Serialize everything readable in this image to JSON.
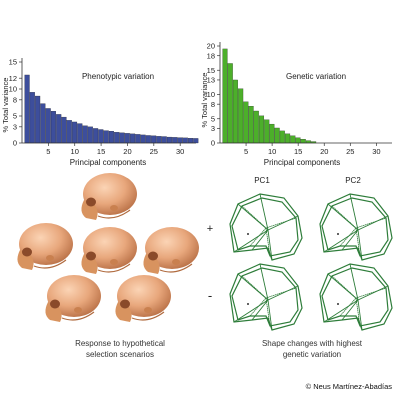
{
  "chart_data": [
    {
      "type": "bar",
      "title": "Phenotypic variation",
      "xlabel": "Principal components",
      "ylabel": "% Total variance",
      "color": "#3d4e9c",
      "xlim": [
        0,
        33
      ],
      "ylim": [
        0,
        15
      ],
      "x_ticks": [
        5,
        10,
        15,
        20,
        25,
        30
      ],
      "y_ticks": [
        0,
        3,
        5,
        8,
        10,
        12,
        15
      ],
      "x": [
        1,
        2,
        3,
        4,
        5,
        6,
        7,
        8,
        9,
        10,
        11,
        12,
        13,
        14,
        15,
        16,
        17,
        18,
        19,
        20,
        21,
        22,
        23,
        24,
        25,
        26,
        27,
        28,
        29,
        30,
        31,
        32,
        33
      ],
      "values": [
        12.6,
        9.4,
        8.7,
        7.3,
        6.4,
        5.9,
        5.3,
        4.8,
        4.2,
        3.9,
        3.6,
        3.2,
        3.0,
        2.7,
        2.5,
        2.3,
        2.2,
        2.0,
        1.9,
        1.8,
        1.7,
        1.6,
        1.5,
        1.4,
        1.35,
        1.25,
        1.2,
        1.1,
        1.05,
        1.0,
        0.95,
        0.9,
        0.85
      ]
    },
    {
      "type": "bar",
      "title": "Genetic variation",
      "xlabel": "Principal components",
      "ylabel": "% Total variance",
      "color": "#4caf2a",
      "xlim": [
        0,
        33
      ],
      "ylim": [
        0,
        20
      ],
      "x_ticks": [
        5,
        10,
        15,
        20,
        25,
        30
      ],
      "y_ticks": [
        0,
        3,
        5,
        8,
        10,
        13,
        15,
        18,
        20
      ],
      "x": [
        1,
        2,
        3,
        4,
        5,
        6,
        7,
        8,
        9,
        10,
        11,
        12,
        13,
        14,
        15,
        16,
        17,
        18,
        19,
        20,
        21,
        22,
        23,
        24,
        25,
        26,
        27,
        28,
        29,
        30,
        31,
        32,
        33
      ],
      "values": [
        19.4,
        16.4,
        13.0,
        11.2,
        8.5,
        7.6,
        6.6,
        5.6,
        4.8,
        3.9,
        3.1,
        2.5,
        1.9,
        1.5,
        1.1,
        0.8,
        0.5,
        0.3,
        0,
        0,
        0,
        0,
        0,
        0,
        0,
        0,
        0,
        0,
        0,
        0,
        0,
        0,
        0
      ]
    }
  ],
  "captions": {
    "left_line1": "Response to hypothetical",
    "left_line2": "selection scenarios",
    "right_line1": "Shape changes with highest",
    "right_line2": "genetic variation"
  },
  "shape_panel": {
    "col1": "PC1",
    "col2": "PC2",
    "row_plus": "+",
    "row_minus": "-",
    "line_color": "#2e7d3a"
  },
  "skull_color": "#e8a77c",
  "credit": "© Neus Martínez-Abadías"
}
